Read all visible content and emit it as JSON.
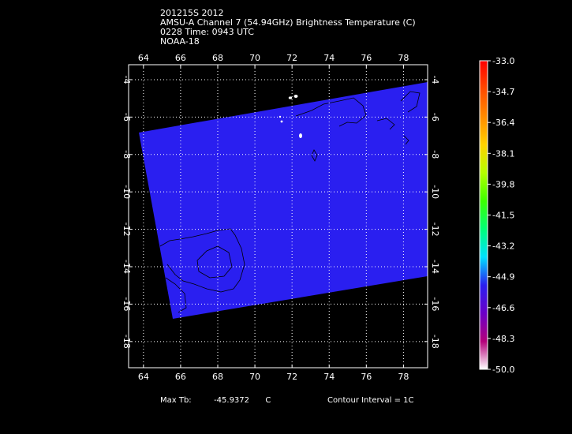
{
  "title": {
    "line1": "201215S 2012",
    "line2": "AMSU-A Channel 7 (54.94GHz) Brightness Temperature (C)",
    "line3": "0228 Time: 0943 UTC",
    "line4": "NOAA-18"
  },
  "footer": {
    "max_label": "Max Tb:",
    "max_value": "-45.9372",
    "max_unit": "C",
    "contour": "Contour Interval = 1C"
  },
  "map": {
    "lon_ticks": [
      "64",
      "66",
      "68",
      "70",
      "72",
      "74",
      "76",
      "78"
    ],
    "lat_ticks": [
      "-4",
      "-6",
      "-8",
      "-10",
      "-12",
      "-14",
      "-16",
      "-18"
    ],
    "lon_range": [
      63.2,
      79.3
    ],
    "lat_range": [
      -19.4,
      -3.2
    ],
    "swath_color": "#2a1ff0",
    "background_color": "#000000",
    "grid_color": "#ffffff"
  },
  "colorbar": {
    "labels": [
      "-33.0",
      "-34.7",
      "-36.4",
      "-38.1",
      "-39.8",
      "-41.5",
      "-43.2",
      "-44.9",
      "-46.6",
      "-48.3",
      "-50.0"
    ],
    "colors": [
      "#ff0000",
      "#ff4a00",
      "#ff8c00",
      "#ffd200",
      "#b4ff00",
      "#3cff00",
      "#00ff78",
      "#00e0ff",
      "#2a1ff0",
      "#6a00c8",
      "#b4007a",
      "#ffffff"
    ]
  }
}
